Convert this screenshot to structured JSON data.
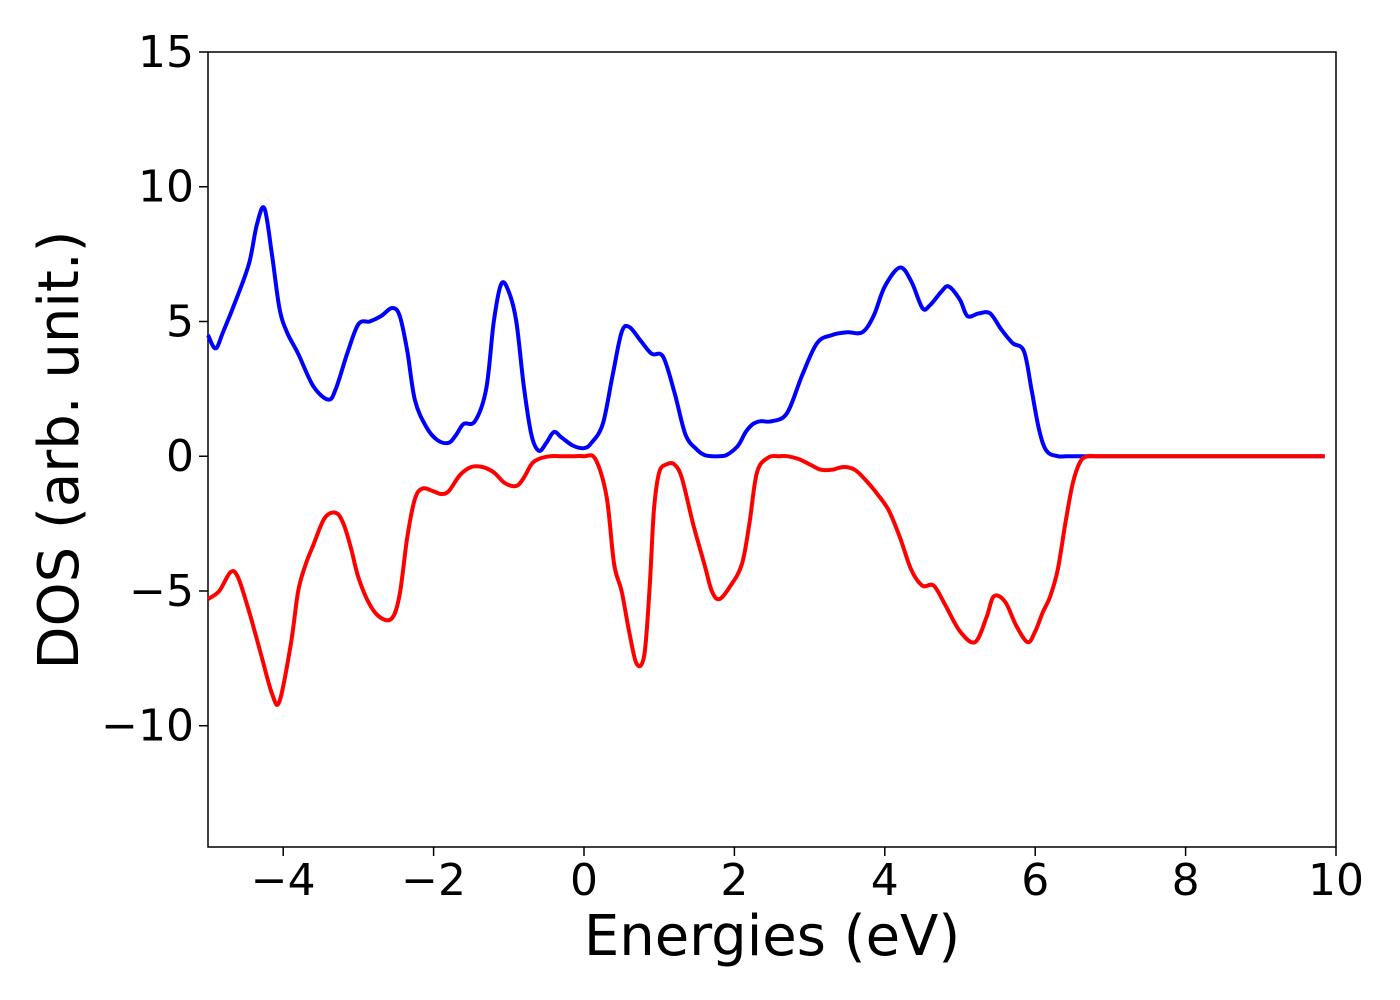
{
  "chart_data": {
    "type": "line",
    "xlabel": "Energies (eV)",
    "ylabel": "DOS (arb. unit.)",
    "xlim": [
      -5,
      10
    ],
    "ylim": [
      -14.5,
      15
    ],
    "grid": false,
    "legend": "none",
    "x_ticks": [
      -4,
      -2,
      0,
      2,
      4,
      6,
      8,
      10
    ],
    "x_tick_labels": [
      "−4",
      "−2",
      "0",
      "2",
      "4",
      "6",
      "8",
      "10"
    ],
    "y_ticks": [
      -10,
      -5,
      0,
      5,
      10,
      15
    ],
    "y_tick_labels": [
      "−10",
      "−5",
      "0",
      "5",
      "10",
      "15"
    ],
    "series": [
      {
        "color": "#0000ff",
        "x": [
          -5.0,
          -4.9,
          -4.8,
          -4.6,
          -4.45,
          -4.35,
          -4.25,
          -4.15,
          -4.05,
          -3.95,
          -3.8,
          -3.6,
          -3.4,
          -3.3,
          -3.15,
          -3.0,
          -2.85,
          -2.7,
          -2.55,
          -2.45,
          -2.35,
          -2.25,
          -2.1,
          -1.95,
          -1.8,
          -1.7,
          -1.6,
          -1.45,
          -1.3,
          -1.2,
          -1.1,
          -1.0,
          -0.9,
          -0.8,
          -0.7,
          -0.6,
          -0.5,
          -0.4,
          -0.3,
          -0.15,
          0.0,
          0.1,
          0.25,
          0.38,
          0.5,
          0.6,
          0.75,
          0.9,
          1.05,
          1.2,
          1.35,
          1.5,
          1.6,
          1.7,
          1.8,
          1.9,
          2.05,
          2.15,
          2.25,
          2.35,
          2.5,
          2.7,
          2.9,
          3.1,
          3.3,
          3.5,
          3.7,
          3.85,
          4.0,
          4.2,
          4.35,
          4.5,
          4.6,
          4.75,
          4.85,
          5.0,
          5.1,
          5.25,
          5.4,
          5.55,
          5.7,
          5.85,
          5.95,
          6.05,
          6.15,
          6.3,
          6.42,
          6.55,
          6.65,
          6.8,
          6.92,
          7.05,
          7.2,
          7.3,
          7.4,
          7.5,
          7.6,
          7.75,
          7.9,
          8.1,
          8.5,
          9.0,
          9.5,
          9.85
        ],
        "y": [
          4.5,
          4.0,
          4.6,
          6.0,
          7.2,
          8.6,
          9.2,
          7.5,
          5.5,
          4.6,
          3.8,
          2.6,
          2.1,
          2.5,
          3.8,
          4.9,
          5.0,
          5.2,
          5.5,
          5.2,
          3.9,
          2.1,
          1.1,
          0.6,
          0.5,
          0.8,
          1.2,
          1.3,
          2.5,
          5.0,
          6.4,
          6.1,
          5.0,
          2.6,
          0.8,
          0.2,
          0.5,
          0.9,
          0.7,
          0.4,
          0.3,
          0.5,
          1.2,
          3.0,
          4.6,
          4.8,
          4.3,
          3.8,
          3.7,
          2.4,
          0.8,
          0.25,
          0.05,
          0.0,
          0.0,
          0.05,
          0.4,
          0.9,
          1.2,
          1.3,
          1.3,
          1.6,
          3.0,
          4.2,
          4.5,
          4.6,
          4.6,
          5.2,
          6.3,
          7.0,
          6.5,
          5.5,
          5.6,
          6.1,
          6.3,
          5.8,
          5.2,
          5.3,
          5.3,
          4.7,
          4.2,
          3.9,
          2.5,
          1.0,
          0.2,
          0.0,
          0.0,
          0.0,
          0.0,
          0.0,
          0.0,
          0.0,
          0.0,
          0.0,
          0.0,
          0.0,
          0.0,
          0.0,
          0.0,
          0.0,
          0.0,
          0.0,
          0.0,
          0.0
        ]
      },
      {
        "color": "#ff0000",
        "x": [
          -5.0,
          -4.85,
          -4.7,
          -4.6,
          -4.45,
          -4.3,
          -4.15,
          -4.05,
          -3.9,
          -3.8,
          -3.7,
          -3.6,
          -3.45,
          -3.3,
          -3.2,
          -3.1,
          -3.0,
          -2.85,
          -2.7,
          -2.55,
          -2.45,
          -2.35,
          -2.25,
          -2.15,
          -2.0,
          -1.9,
          -1.8,
          -1.65,
          -1.5,
          -1.35,
          -1.2,
          -1.05,
          -0.9,
          -0.8,
          -0.7,
          -0.6,
          -0.45,
          -0.3,
          -0.15,
          0.0,
          0.15,
          0.3,
          0.4,
          0.5,
          0.6,
          0.7,
          0.8,
          0.87,
          0.93,
          1.0,
          1.1,
          1.2,
          1.3,
          1.45,
          1.6,
          1.7,
          1.8,
          1.95,
          2.1,
          2.2,
          2.3,
          2.45,
          2.6,
          2.7,
          2.85,
          3.0,
          3.15,
          3.3,
          3.45,
          3.6,
          3.75,
          3.9,
          4.05,
          4.2,
          4.35,
          4.5,
          4.65,
          4.8,
          5.0,
          5.2,
          5.35,
          5.45,
          5.6,
          5.75,
          5.9,
          6.0,
          6.1,
          6.2,
          6.3,
          6.4,
          6.5,
          6.6,
          6.7,
          6.8,
          6.9,
          7.05,
          7.2,
          7.35,
          7.5,
          7.65,
          7.8,
          7.95,
          8.1,
          8.3,
          8.6,
          9.0,
          9.5,
          9.85
        ],
        "y": [
          -5.3,
          -5.0,
          -4.3,
          -4.5,
          -5.8,
          -7.3,
          -8.8,
          -9.1,
          -7.0,
          -5.0,
          -4.0,
          -3.3,
          -2.3,
          -2.1,
          -2.5,
          -3.4,
          -4.5,
          -5.5,
          -6.0,
          -6.0,
          -5.1,
          -3.0,
          -1.6,
          -1.2,
          -1.3,
          -1.4,
          -1.3,
          -0.7,
          -0.4,
          -0.4,
          -0.6,
          -1.0,
          -1.1,
          -0.8,
          -0.3,
          -0.1,
          0.0,
          0.0,
          0.0,
          0.0,
          -0.1,
          -1.5,
          -4.0,
          -5.0,
          -6.5,
          -7.7,
          -7.4,
          -5.0,
          -2.0,
          -0.6,
          -0.3,
          -0.3,
          -0.8,
          -2.5,
          -4.0,
          -5.0,
          -5.3,
          -4.8,
          -4.0,
          -2.5,
          -0.6,
          -0.05,
          0.0,
          0.0,
          -0.1,
          -0.3,
          -0.5,
          -0.5,
          -0.4,
          -0.5,
          -0.9,
          -1.4,
          -2.0,
          -3.0,
          -4.2,
          -4.8,
          -4.8,
          -5.5,
          -6.5,
          -6.9,
          -6.0,
          -5.2,
          -5.4,
          -6.3,
          -6.9,
          -6.5,
          -5.8,
          -5.2,
          -4.2,
          -2.5,
          -1.0,
          -0.2,
          0.0,
          0.0,
          0.0,
          0.0,
          0.0,
          0.0,
          0.0,
          0.0,
          0.0,
          0.0,
          0.0,
          0.0,
          0.0,
          0.0,
          0.0,
          0.0
        ]
      }
    ]
  }
}
